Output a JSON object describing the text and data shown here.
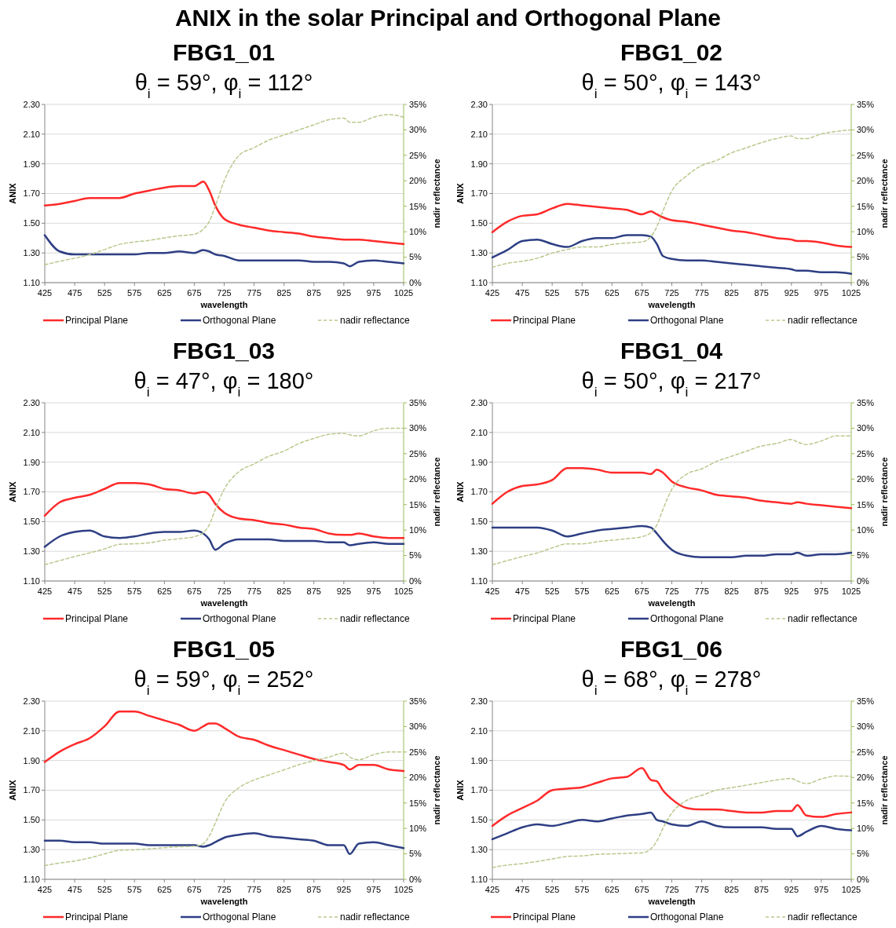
{
  "chart_data": [
    {
      "type": "line",
      "annotations": [
        "ANIX in the solar Principal and Orthogonal Plane"
      ],
      "title": "FBG1_01",
      "subtitle": "θ$_{i}$ = 59°, φ$_{i}$ = 112°",
      "xlabel": "wavelength",
      "ylabel": "ANIX",
      "y2label": "nadir reflectance",
      "grid": "y",
      "legend": "bottom",
      "x": [
        425,
        450,
        475,
        500,
        525,
        550,
        575,
        600,
        625,
        650,
        675,
        690,
        700,
        710,
        725,
        750,
        775,
        800,
        825,
        850,
        875,
        900,
        925,
        935,
        950,
        975,
        1000,
        1025
      ],
      "xlim": [
        425,
        1025
      ],
      "xticks": [
        425,
        475,
        525,
        575,
        625,
        675,
        725,
        775,
        825,
        875,
        925,
        975,
        1025
      ],
      "ylim": [
        1.1,
        2.3
      ],
      "yticks": [
        {
          "value": 1.1,
          "label": "1.10"
        },
        {
          "value": 1.3,
          "label": "1.30"
        },
        {
          "value": 1.5,
          "label": "1.50"
        },
        {
          "value": 1.7,
          "label": "1.70"
        },
        {
          "value": 1.9,
          "label": "1.90"
        },
        {
          "value": 2.1,
          "label": "2.10"
        },
        {
          "value": 2.3,
          "label": "2.30"
        }
      ],
      "y2lim": [
        0,
        35
      ],
      "y2ticks": [
        {
          "value": 0,
          "label": "0%"
        },
        {
          "value": 5,
          "label": "5%"
        },
        {
          "value": 10,
          "label": "10%"
        },
        {
          "value": 15,
          "label": "15%"
        },
        {
          "value": 20,
          "label": "20%"
        },
        {
          "value": 25,
          "label": "25%"
        },
        {
          "value": 30,
          "label": "30%"
        },
        {
          "value": 35,
          "label": "35%"
        }
      ],
      "series": [
        {
          "name": "Principal Plane",
          "color": "#ff2a2a",
          "values": [
            1.62,
            1.63,
            1.65,
            1.67,
            1.67,
            1.67,
            1.7,
            1.72,
            1.74,
            1.75,
            1.75,
            1.78,
            1.72,
            1.62,
            1.53,
            1.49,
            1.47,
            1.45,
            1.44,
            1.43,
            1.41,
            1.4,
            1.39,
            1.39,
            1.39,
            1.38,
            1.37,
            1.36
          ]
        },
        {
          "name": "Orthogonal Plane",
          "color": "#2e3f84",
          "values": [
            1.42,
            1.31,
            1.29,
            1.29,
            1.29,
            1.29,
            1.29,
            1.3,
            1.3,
            1.31,
            1.3,
            1.32,
            1.31,
            1.29,
            1.28,
            1.25,
            1.25,
            1.25,
            1.25,
            1.25,
            1.24,
            1.24,
            1.23,
            1.21,
            1.24,
            1.25,
            1.24,
            1.23
          ]
        },
        {
          "name": "nadir reflectance",
          "color": "#b8c98c",
          "axis": "y2",
          "line_style": "dashed",
          "values": [
            3.5,
            4.2,
            4.8,
            5.5,
            6.5,
            7.5,
            8.0,
            8.3,
            8.8,
            9.2,
            9.5,
            10.5,
            12,
            15,
            20,
            25,
            26.5,
            28,
            29,
            30,
            31,
            32,
            32.3,
            31.5,
            31.5,
            32.5,
            33,
            32.5
          ]
        }
      ]
    },
    {
      "type": "line",
      "title": "FBG1_02",
      "subtitle": "θ$_{i}$ = 50°, φ$_{i}$ = 143°",
      "xlabel": "wavelength",
      "ylabel": "ANIX",
      "y2label": "nadir reflectance",
      "grid": "y",
      "legend": "bottom",
      "x": [
        425,
        450,
        475,
        500,
        525,
        550,
        575,
        600,
        625,
        650,
        675,
        690,
        700,
        710,
        725,
        750,
        775,
        800,
        825,
        850,
        875,
        900,
        925,
        935,
        950,
        975,
        1000,
        1025
      ],
      "xlim": [
        425,
        1025
      ],
      "xticks": [
        425,
        475,
        525,
        575,
        625,
        675,
        725,
        775,
        825,
        875,
        925,
        975,
        1025
      ],
      "ylim": [
        1.1,
        2.3
      ],
      "yticks": [
        {
          "value": 1.1,
          "label": "1.10"
        },
        {
          "value": 1.3,
          "label": "1.30"
        },
        {
          "value": 1.5,
          "label": "1.50"
        },
        {
          "value": 1.7,
          "label": "1.70"
        },
        {
          "value": 1.9,
          "label": "1.90"
        },
        {
          "value": 2.1,
          "label": "2.10"
        },
        {
          "value": 2.3,
          "label": "2.30"
        }
      ],
      "y2lim": [
        0,
        35
      ],
      "y2ticks": [
        {
          "value": 0,
          "label": "0%"
        },
        {
          "value": 5,
          "label": "5%"
        },
        {
          "value": 10,
          "label": "10%"
        },
        {
          "value": 15,
          "label": "15%"
        },
        {
          "value": 20,
          "label": "20%"
        },
        {
          "value": 25,
          "label": "25%"
        },
        {
          "value": 30,
          "label": "30%"
        },
        {
          "value": 35,
          "label": "35%"
        }
      ],
      "series": [
        {
          "name": "Principal Plane",
          "color": "#ff2a2a",
          "values": [
            1.44,
            1.51,
            1.55,
            1.56,
            1.6,
            1.63,
            1.62,
            1.61,
            1.6,
            1.59,
            1.56,
            1.58,
            1.56,
            1.54,
            1.52,
            1.51,
            1.49,
            1.47,
            1.45,
            1.44,
            1.42,
            1.4,
            1.39,
            1.38,
            1.38,
            1.37,
            1.35,
            1.34
          ]
        },
        {
          "name": "Orthogonal Plane",
          "color": "#2e3f84",
          "values": [
            1.27,
            1.32,
            1.38,
            1.39,
            1.36,
            1.34,
            1.38,
            1.4,
            1.4,
            1.42,
            1.42,
            1.41,
            1.36,
            1.28,
            1.26,
            1.25,
            1.25,
            1.24,
            1.23,
            1.22,
            1.21,
            1.2,
            1.19,
            1.18,
            1.18,
            1.17,
            1.17,
            1.16
          ]
        },
        {
          "name": "nadir reflectance",
          "color": "#b8c98c",
          "axis": "y2",
          "line_style": "dashed",
          "values": [
            3.0,
            3.8,
            4.2,
            4.8,
            5.8,
            6.5,
            7.0,
            7.0,
            7.5,
            7.8,
            8.0,
            9,
            11,
            14,
            18,
            21,
            23,
            24,
            25.5,
            26.5,
            27.5,
            28.3,
            28.8,
            28.3,
            28.3,
            29.2,
            29.7,
            30
          ]
        }
      ]
    },
    {
      "type": "line",
      "title": "FBG1_03",
      "subtitle": "θ$_{i}$ = 47°, φ$_{i}$ = 180°",
      "xlabel": "wavelength",
      "ylabel": "ANIX",
      "y2label": "nadir reflectance",
      "grid": "y",
      "legend": "bottom",
      "x": [
        425,
        450,
        475,
        500,
        525,
        550,
        575,
        600,
        625,
        650,
        675,
        690,
        700,
        710,
        725,
        750,
        775,
        800,
        825,
        850,
        875,
        900,
        925,
        935,
        950,
        975,
        1000,
        1025
      ],
      "xlim": [
        425,
        1025
      ],
      "xticks": [
        425,
        475,
        525,
        575,
        625,
        675,
        725,
        775,
        825,
        875,
        925,
        975,
        1025
      ],
      "ylim": [
        1.1,
        2.3
      ],
      "yticks": [
        {
          "value": 1.1,
          "label": "1.10"
        },
        {
          "value": 1.3,
          "label": "1.30"
        },
        {
          "value": 1.5,
          "label": "1.50"
        },
        {
          "value": 1.7,
          "label": "1.70"
        },
        {
          "value": 1.9,
          "label": "1.90"
        },
        {
          "value": 2.1,
          "label": "2.10"
        },
        {
          "value": 2.3,
          "label": "2.30"
        }
      ],
      "y2lim": [
        0,
        35
      ],
      "y2ticks": [
        {
          "value": 0,
          "label": "0%"
        },
        {
          "value": 5,
          "label": "5%"
        },
        {
          "value": 10,
          "label": "10%"
        },
        {
          "value": 15,
          "label": "15%"
        },
        {
          "value": 20,
          "label": "20%"
        },
        {
          "value": 25,
          "label": "25%"
        },
        {
          "value": 30,
          "label": "30%"
        },
        {
          "value": 35,
          "label": "35%"
        }
      ],
      "series": [
        {
          "name": "Principal Plane",
          "color": "#ff2a2a",
          "values": [
            1.54,
            1.63,
            1.66,
            1.68,
            1.72,
            1.76,
            1.76,
            1.75,
            1.72,
            1.71,
            1.69,
            1.7,
            1.68,
            1.62,
            1.56,
            1.52,
            1.51,
            1.49,
            1.48,
            1.46,
            1.45,
            1.42,
            1.41,
            1.41,
            1.42,
            1.4,
            1.39,
            1.39
          ]
        },
        {
          "name": "Orthogonal Plane",
          "color": "#2e3f84",
          "values": [
            1.33,
            1.4,
            1.43,
            1.44,
            1.4,
            1.39,
            1.4,
            1.42,
            1.43,
            1.43,
            1.44,
            1.42,
            1.38,
            1.31,
            1.35,
            1.38,
            1.38,
            1.38,
            1.37,
            1.37,
            1.37,
            1.36,
            1.36,
            1.34,
            1.35,
            1.36,
            1.35,
            1.35
          ]
        },
        {
          "name": "nadir reflectance",
          "color": "#b8c98c",
          "axis": "y2",
          "line_style": "dashed",
          "values": [
            3.2,
            4.0,
            4.8,
            5.5,
            6.3,
            7.2,
            7.3,
            7.5,
            8.0,
            8.3,
            8.7,
            9.5,
            11,
            14,
            18,
            21.5,
            23,
            24.5,
            25.5,
            27,
            28,
            28.8,
            29,
            28.7,
            28.5,
            29.5,
            30,
            30
          ]
        }
      ]
    },
    {
      "type": "line",
      "title": "FBG1_04",
      "subtitle": "θ$_{i}$ = 50°, φ$_{i}$ = 217°",
      "xlabel": "wavelength",
      "ylabel": "ANIX",
      "y2label": "nadir reflectance",
      "grid": "y",
      "legend": "bottom",
      "x": [
        425,
        450,
        475,
        500,
        525,
        550,
        575,
        600,
        625,
        650,
        675,
        690,
        700,
        710,
        725,
        750,
        775,
        800,
        825,
        850,
        875,
        900,
        925,
        935,
        950,
        975,
        1000,
        1025
      ],
      "xlim": [
        425,
        1025
      ],
      "xticks": [
        425,
        475,
        525,
        575,
        625,
        675,
        725,
        775,
        825,
        875,
        925,
        975,
        1025
      ],
      "ylim": [
        1.1,
        2.3
      ],
      "yticks": [
        {
          "value": 1.1,
          "label": "1.10"
        },
        {
          "value": 1.3,
          "label": "1.30"
        },
        {
          "value": 1.5,
          "label": "1.50"
        },
        {
          "value": 1.7,
          "label": "1.70"
        },
        {
          "value": 1.9,
          "label": "1.90"
        },
        {
          "value": 2.1,
          "label": "2.10"
        },
        {
          "value": 2.3,
          "label": "2.30"
        }
      ],
      "y2lim": [
        0,
        35
      ],
      "y2ticks": [
        {
          "value": 0,
          "label": "0%"
        },
        {
          "value": 5,
          "label": "5%"
        },
        {
          "value": 10,
          "label": "10%"
        },
        {
          "value": 15,
          "label": "15%"
        },
        {
          "value": 20,
          "label": "20%"
        },
        {
          "value": 25,
          "label": "25%"
        },
        {
          "value": 30,
          "label": "30%"
        },
        {
          "value": 35,
          "label": "35%"
        }
      ],
      "series": [
        {
          "name": "Principal Plane",
          "color": "#ff2a2a",
          "values": [
            1.62,
            1.7,
            1.74,
            1.75,
            1.78,
            1.86,
            1.86,
            1.85,
            1.83,
            1.83,
            1.83,
            1.82,
            1.85,
            1.83,
            1.77,
            1.73,
            1.71,
            1.68,
            1.67,
            1.66,
            1.64,
            1.63,
            1.62,
            1.63,
            1.62,
            1.61,
            1.6,
            1.59
          ]
        },
        {
          "name": "Orthogonal Plane",
          "color": "#2e3f84",
          "values": [
            1.46,
            1.46,
            1.46,
            1.46,
            1.44,
            1.4,
            1.42,
            1.44,
            1.45,
            1.46,
            1.47,
            1.46,
            1.42,
            1.37,
            1.31,
            1.27,
            1.26,
            1.26,
            1.26,
            1.27,
            1.27,
            1.28,
            1.28,
            1.29,
            1.27,
            1.28,
            1.28,
            1.29
          ]
        },
        {
          "name": "nadir reflectance",
          "color": "#b8c98c",
          "axis": "y2",
          "line_style": "dashed",
          "values": [
            3.2,
            4.0,
            4.8,
            5.5,
            6.5,
            7.3,
            7.3,
            7.7,
            8.0,
            8.3,
            8.7,
            9.5,
            11,
            14,
            18,
            21,
            22,
            23.5,
            24.5,
            25.5,
            26.5,
            27,
            27.8,
            27.3,
            26.8,
            27.5,
            28.5,
            28.5
          ]
        }
      ]
    },
    {
      "type": "line",
      "title": "FBG1_05",
      "subtitle": "θ$_{i}$ = 59°, φ$_{i}$ = 252°",
      "xlabel": "wavelength",
      "ylabel": "ANIX",
      "y2label": "nadir reflectance",
      "grid": "y",
      "legend": "bottom",
      "x": [
        425,
        450,
        475,
        500,
        525,
        550,
        575,
        600,
        625,
        650,
        675,
        690,
        700,
        710,
        725,
        750,
        775,
        800,
        825,
        850,
        875,
        900,
        925,
        935,
        950,
        975,
        1000,
        1025
      ],
      "xlim": [
        425,
        1025
      ],
      "xticks": [
        425,
        475,
        525,
        575,
        625,
        675,
        725,
        775,
        825,
        875,
        925,
        975,
        1025
      ],
      "ylim": [
        1.1,
        2.3
      ],
      "yticks": [
        {
          "value": 1.1,
          "label": "1.10"
        },
        {
          "value": 1.3,
          "label": "1.30"
        },
        {
          "value": 1.5,
          "label": "1.50"
        },
        {
          "value": 1.7,
          "label": "1.70"
        },
        {
          "value": 1.9,
          "label": "1.90"
        },
        {
          "value": 2.1,
          "label": "2.10"
        },
        {
          "value": 2.3,
          "label": "2.30"
        }
      ],
      "y2lim": [
        0,
        35
      ],
      "y2ticks": [
        {
          "value": 0,
          "label": "0%"
        },
        {
          "value": 5,
          "label": "5%"
        },
        {
          "value": 10,
          "label": "10%"
        },
        {
          "value": 15,
          "label": "15%"
        },
        {
          "value": 20,
          "label": "20%"
        },
        {
          "value": 25,
          "label": "25%"
        },
        {
          "value": 30,
          "label": "30%"
        },
        {
          "value": 35,
          "label": "35%"
        }
      ],
      "series": [
        {
          "name": "Principal Plane",
          "color": "#ff2a2a",
          "values": [
            1.89,
            1.96,
            2.01,
            2.05,
            2.13,
            2.23,
            2.23,
            2.2,
            2.17,
            2.14,
            2.1,
            2.13,
            2.15,
            2.15,
            2.12,
            2.06,
            2.04,
            2.0,
            1.97,
            1.94,
            1.91,
            1.89,
            1.87,
            1.84,
            1.87,
            1.87,
            1.84,
            1.83
          ]
        },
        {
          "name": "Orthogonal Plane",
          "color": "#2e3f84",
          "values": [
            1.36,
            1.36,
            1.35,
            1.35,
            1.34,
            1.34,
            1.34,
            1.33,
            1.33,
            1.33,
            1.33,
            1.32,
            1.33,
            1.35,
            1.38,
            1.4,
            1.41,
            1.39,
            1.38,
            1.37,
            1.36,
            1.33,
            1.33,
            1.27,
            1.34,
            1.35,
            1.33,
            1.31
          ]
        },
        {
          "name": "nadir reflectance",
          "color": "#b8c98c",
          "axis": "y2",
          "line_style": "dashed",
          "values": [
            2.7,
            3.2,
            3.6,
            4.2,
            5.0,
            5.7,
            5.8,
            6.0,
            6.2,
            6.4,
            6.5,
            7,
            8.5,
            11,
            15,
            18,
            19.5,
            20.5,
            21.5,
            22.5,
            23.3,
            24,
            24.8,
            24,
            23.5,
            24.5,
            25,
            25
          ]
        }
      ]
    },
    {
      "type": "line",
      "title": "FBG1_06",
      "subtitle": "θ$_{i}$ = 68°, φ$_{i}$ = 278°",
      "xlabel": "wavelength",
      "ylabel": "ANIX",
      "y2label": "nadir reflectance",
      "grid": "y",
      "legend": "bottom",
      "x": [
        425,
        450,
        475,
        500,
        525,
        550,
        575,
        600,
        625,
        650,
        675,
        690,
        700,
        710,
        725,
        750,
        775,
        800,
        825,
        850,
        875,
        900,
        925,
        935,
        950,
        975,
        1000,
        1025
      ],
      "xlim": [
        425,
        1025
      ],
      "xticks": [
        425,
        475,
        525,
        575,
        625,
        675,
        725,
        775,
        825,
        875,
        925,
        975,
        1025
      ],
      "ylim": [
        1.1,
        2.3
      ],
      "yticks": [
        {
          "value": 1.1,
          "label": "1.10"
        },
        {
          "value": 1.3,
          "label": "1.30"
        },
        {
          "value": 1.5,
          "label": "1.50"
        },
        {
          "value": 1.7,
          "label": "1.70"
        },
        {
          "value": 1.9,
          "label": "1.90"
        },
        {
          "value": 2.1,
          "label": "2.10"
        },
        {
          "value": 2.3,
          "label": "2.30"
        }
      ],
      "y2lim": [
        0,
        35
      ],
      "y2ticks": [
        {
          "value": 0,
          "label": "0%"
        },
        {
          "value": 5,
          "label": "5%"
        },
        {
          "value": 10,
          "label": "10%"
        },
        {
          "value": 15,
          "label": "15%"
        },
        {
          "value": 20,
          "label": "20%"
        },
        {
          "value": 25,
          "label": "25%"
        },
        {
          "value": 30,
          "label": "30%"
        },
        {
          "value": 35,
          "label": "35%"
        }
      ],
      "series": [
        {
          "name": "Principal Plane",
          "color": "#ff2a2a",
          "values": [
            1.46,
            1.53,
            1.58,
            1.63,
            1.7,
            1.71,
            1.72,
            1.75,
            1.78,
            1.79,
            1.85,
            1.77,
            1.76,
            1.7,
            1.64,
            1.58,
            1.57,
            1.57,
            1.56,
            1.55,
            1.55,
            1.56,
            1.56,
            1.6,
            1.53,
            1.52,
            1.54,
            1.55
          ]
        },
        {
          "name": "Orthogonal Plane",
          "color": "#2e3f84",
          "values": [
            1.37,
            1.41,
            1.45,
            1.47,
            1.46,
            1.48,
            1.5,
            1.49,
            1.51,
            1.53,
            1.54,
            1.55,
            1.5,
            1.49,
            1.47,
            1.46,
            1.49,
            1.46,
            1.45,
            1.45,
            1.45,
            1.44,
            1.44,
            1.39,
            1.42,
            1.46,
            1.44,
            1.43
          ]
        },
        {
          "name": "nadir reflectance",
          "color": "#b8c98c",
          "axis": "y2",
          "line_style": "dashed",
          "values": [
            2.3,
            2.8,
            3.1,
            3.5,
            4.0,
            4.5,
            4.6,
            4.9,
            5.0,
            5.1,
            5.2,
            6,
            7.5,
            10,
            13,
            15.5,
            16.5,
            17.5,
            18,
            18.5,
            19,
            19.5,
            19.8,
            19.3,
            18.8,
            19.7,
            20.3,
            20.2
          ]
        }
      ]
    }
  ]
}
